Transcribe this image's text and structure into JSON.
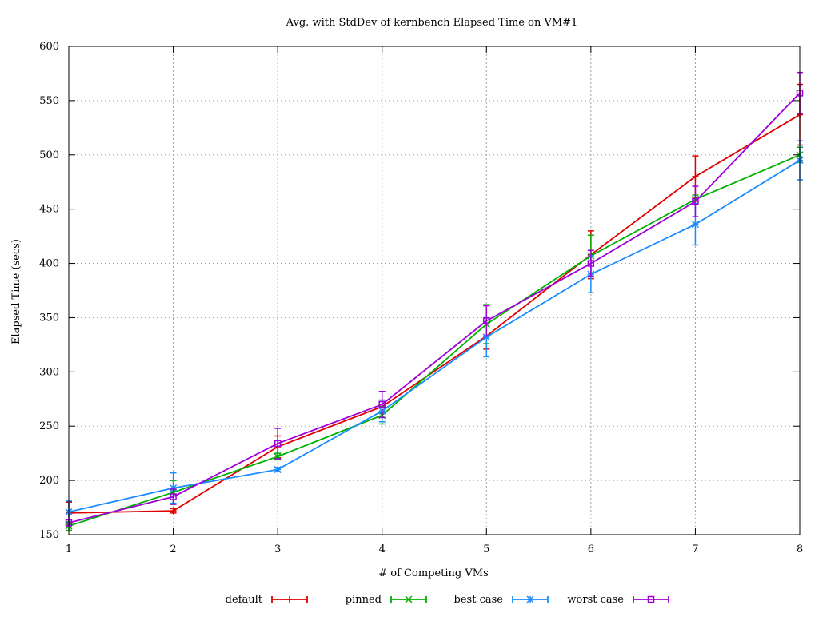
{
  "chart_data": {
    "type": "line",
    "title": "Avg. with StdDev of kernbench Elapsed Time on VM#1",
    "xlabel": "# of Competing VMs",
    "ylabel": "Elapsed Time (secs)",
    "xlim": [
      1,
      8
    ],
    "ylim": [
      150,
      600
    ],
    "xticks": [
      1,
      2,
      3,
      4,
      5,
      6,
      7,
      8
    ],
    "yticks": [
      150,
      200,
      250,
      300,
      350,
      400,
      450,
      500,
      550,
      600
    ],
    "grid": true,
    "legend_position": "bottom",
    "x": [
      1,
      2,
      3,
      4,
      5,
      6,
      7,
      8
    ],
    "series": [
      {
        "name": "default",
        "color": "#e00000",
        "marker": "plus",
        "values": [
          170,
          172,
          231,
          268,
          333,
          408,
          480,
          537
        ],
        "errors": [
          10,
          2,
          10,
          6,
          12,
          22,
          19,
          28
        ]
      },
      {
        "name": "pinned",
        "color": "#00b000",
        "marker": "cross",
        "values": [
          158,
          189,
          222,
          260,
          344,
          407,
          459,
          500
        ],
        "errors": [
          4,
          11,
          3,
          8,
          18,
          19,
          4,
          7
        ]
      },
      {
        "name": "best case",
        "color": "#1a8cff",
        "marker": "star",
        "values": [
          171,
          193,
          210,
          264,
          332,
          390,
          436,
          495
        ],
        "errors": [
          10,
          14,
          2,
          10,
          18,
          17,
          19,
          18
        ]
      },
      {
        "name": "worst case",
        "color": "#a000d8",
        "marker": "square",
        "values": [
          161,
          185,
          234,
          270,
          347,
          400,
          457,
          557
        ],
        "errors": [
          3,
          7,
          14,
          12,
          14,
          12,
          14,
          19
        ]
      }
    ]
  }
}
